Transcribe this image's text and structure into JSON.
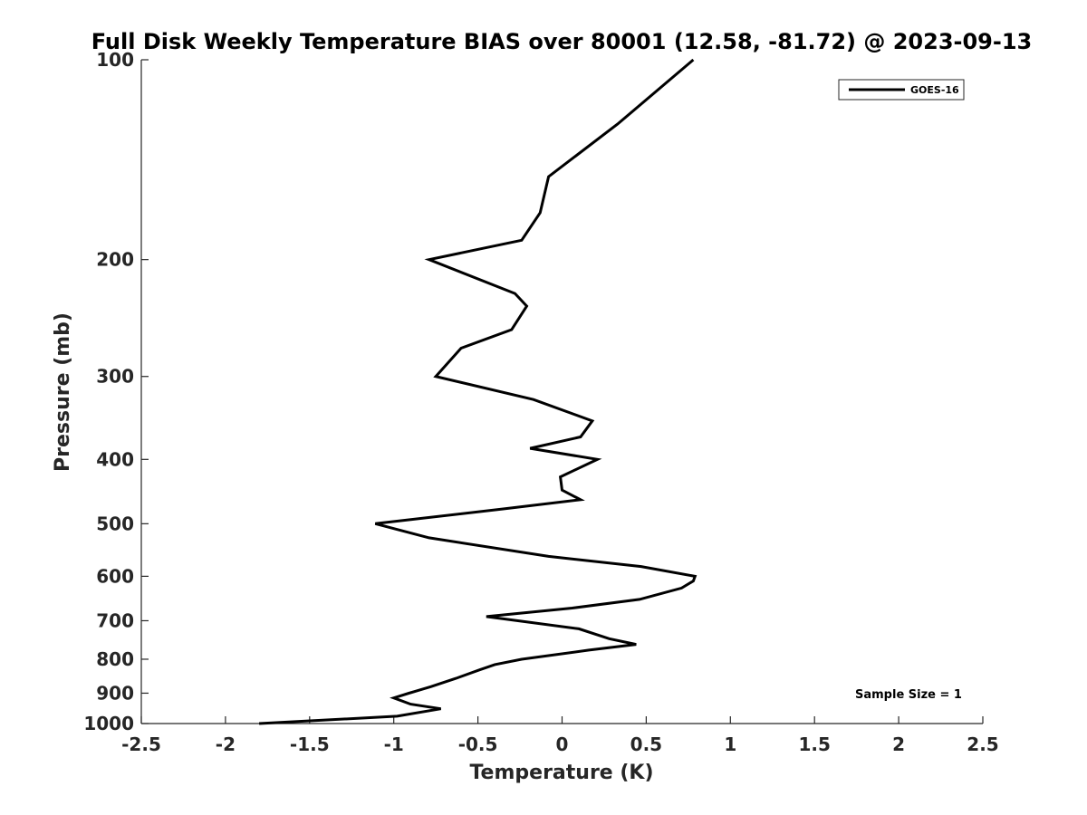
{
  "chart_data": {
    "type": "line",
    "title": "Full Disk Weekly Temperature BIAS over 80001 (12.58, -81.72) @ 2023-09-13",
    "xlabel": "Temperature (K)",
    "ylabel": "Pressure (mb)",
    "xlim": [
      -2.5,
      2.5
    ],
    "ylim": [
      1000,
      100
    ],
    "yscale": "log",
    "y_reversed": true,
    "grid": false,
    "legend_position": "top-right",
    "x_ticks": [
      "-2.5",
      "-2",
      "-1.5",
      "-1",
      "-0.5",
      "0",
      "0.5",
      "1",
      "1.5",
      "2",
      "2.5"
    ],
    "x_tick_values": [
      -2.5,
      -2,
      -1.5,
      -1,
      -0.5,
      0,
      0.5,
      1,
      1.5,
      2,
      2.5
    ],
    "y_ticks": [
      "100",
      "200",
      "300",
      "400",
      "500",
      "600",
      "700",
      "800",
      "900",
      "1000"
    ],
    "y_tick_values": [
      100,
      200,
      300,
      400,
      500,
      600,
      700,
      800,
      900,
      1000
    ],
    "series": [
      {
        "name": "GOES-16",
        "color": "#000000",
        "points": [
          [
            0.78,
            100
          ],
          [
            0.33,
            125
          ],
          [
            -0.08,
            150
          ],
          [
            -0.13,
            170
          ],
          [
            -0.24,
            187
          ],
          [
            -0.79,
            200
          ],
          [
            -0.28,
            225
          ],
          [
            -0.21,
            235
          ],
          [
            -0.3,
            255
          ],
          [
            -0.6,
            272
          ],
          [
            -0.75,
            300
          ],
          [
            -0.17,
            325
          ],
          [
            0.18,
            350
          ],
          [
            0.11,
            370
          ],
          [
            -0.19,
            385
          ],
          [
            0.21,
            400
          ],
          [
            -0.01,
            425
          ],
          [
            0.0,
            445
          ],
          [
            0.11,
            460
          ],
          [
            -0.35,
            475
          ],
          [
            -1.11,
            500
          ],
          [
            -0.79,
            525
          ],
          [
            -0.08,
            560
          ],
          [
            0.47,
            580
          ],
          [
            0.79,
            600
          ],
          [
            0.78,
            610
          ],
          [
            0.71,
            625
          ],
          [
            0.46,
            650
          ],
          [
            0.06,
            670
          ],
          [
            -0.45,
            690
          ],
          [
            0.1,
            720
          ],
          [
            0.28,
            745
          ],
          [
            0.44,
            760
          ],
          [
            0.16,
            775
          ],
          [
            -0.24,
            800
          ],
          [
            -0.4,
            815
          ],
          [
            -0.49,
            830
          ],
          [
            -0.63,
            855
          ],
          [
            -0.78,
            880
          ],
          [
            -0.91,
            900
          ],
          [
            -1.0,
            915
          ],
          [
            -0.9,
            935
          ],
          [
            -0.72,
            950
          ],
          [
            -0.98,
            975
          ],
          [
            -1.8,
            1000
          ]
        ]
      }
    ],
    "annotation": "Sample Size = 1"
  }
}
